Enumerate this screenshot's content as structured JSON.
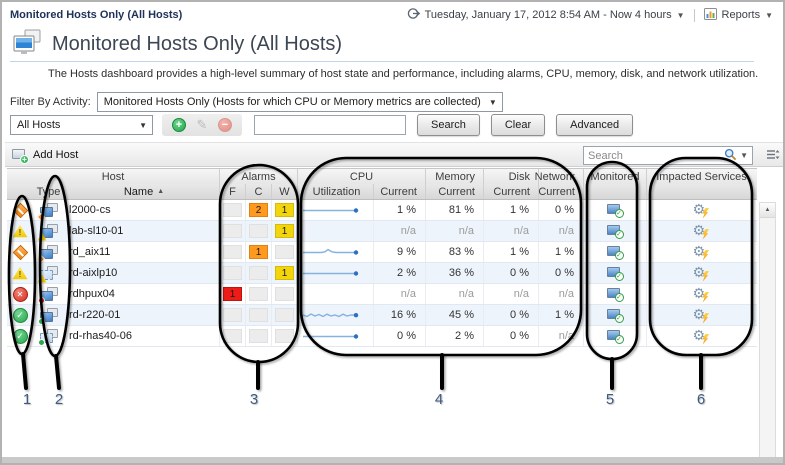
{
  "breadcrumb": "Monitored Hosts Only (All Hosts)",
  "topbar": {
    "time_range": "Tuesday, January 17, 2012 8:54 AM - Now 4 hours",
    "reports_label": "Reports"
  },
  "header": {
    "title": "Monitored Hosts Only (All Hosts)",
    "description": "The Hosts dashboard provides a high-level summary of host state and performance, including alarms, CPU, memory, disk, and network utilization."
  },
  "filters": {
    "activity_label": "Filter By Activity:",
    "activity_value": "Monitored Hosts Only (Hosts for which CPU or Memory metrics are collected)",
    "scope_value": "All Hosts",
    "search_value": "",
    "search_button": "Search",
    "clear_button": "Clear",
    "advanced_button": "Advanced"
  },
  "toolbar": {
    "add_host_label": "Add Host",
    "search_placeholder": "Search"
  },
  "table": {
    "group_headers": [
      "Host",
      "Alarms",
      "CPU",
      "Memory",
      "Disk",
      "Network",
      "Monitored",
      "Impacted Services"
    ],
    "sub_headers": [
      "Type",
      "Name",
      "F",
      "C",
      "W",
      "Utilization",
      "Current",
      "Current",
      "Current",
      "Current"
    ],
    "rows": [
      {
        "name": "l2000-cs",
        "severity": "critical",
        "type_variant": "physical",
        "alarms": {
          "f": "",
          "c": "2",
          "w": "1"
        },
        "sparkline": "flat",
        "cpu": "1 %",
        "memory": "81 %",
        "disk": "1 %",
        "network": "0 %"
      },
      {
        "name": "lab-sl10-01",
        "severity": "warning",
        "type_variant": "physical",
        "alarms": {
          "f": "",
          "c": "",
          "w": "1"
        },
        "sparkline": "none",
        "cpu": "n/a",
        "memory": "n/a",
        "disk": "n/a",
        "network": "n/a"
      },
      {
        "name": "rd_aix11",
        "severity": "critical",
        "type_variant": "physical",
        "alarms": {
          "f": "",
          "c": "1",
          "w": ""
        },
        "sparkline": "bump",
        "cpu": "9 %",
        "memory": "83 %",
        "disk": "1 %",
        "network": "1 %"
      },
      {
        "name": "rd-aixlp10",
        "severity": "warning",
        "type_variant": "virtual",
        "alarms": {
          "f": "",
          "c": "",
          "w": "1"
        },
        "sparkline": "flat",
        "cpu": "2 %",
        "memory": "36 %",
        "disk": "0 %",
        "network": "0 %"
      },
      {
        "name": "rdhpux04",
        "severity": "fatal",
        "type_variant": "physical",
        "alarms": {
          "f": "1",
          "c": "",
          "w": ""
        },
        "sparkline": "none",
        "cpu": "n/a",
        "memory": "n/a",
        "disk": "n/a",
        "network": "n/a"
      },
      {
        "name": "rd-r220-01",
        "severity": "normal",
        "type_variant": "physical",
        "alarms": {
          "f": "",
          "c": "",
          "w": ""
        },
        "sparkline": "wavy",
        "cpu": "16 %",
        "memory": "45 %",
        "disk": "0 %",
        "network": "1 %"
      },
      {
        "name": "rd-rhas40-06",
        "severity": "normal",
        "type_variant": "virtual",
        "alarms": {
          "f": "",
          "c": "",
          "w": ""
        },
        "sparkline": "flat",
        "cpu": "0 %",
        "memory": "2 %",
        "disk": "0 %",
        "network": "n/a"
      }
    ]
  },
  "callouts": [
    "1",
    "2",
    "3",
    "4",
    "5",
    "6"
  ],
  "colors": {
    "fatal": "#ed1c16",
    "critical": "#ff9a1e",
    "warning": "#f2d50c",
    "normal": "#28a74c",
    "sparkline": "#86b2dd",
    "accent_title": "#3d4654"
  }
}
